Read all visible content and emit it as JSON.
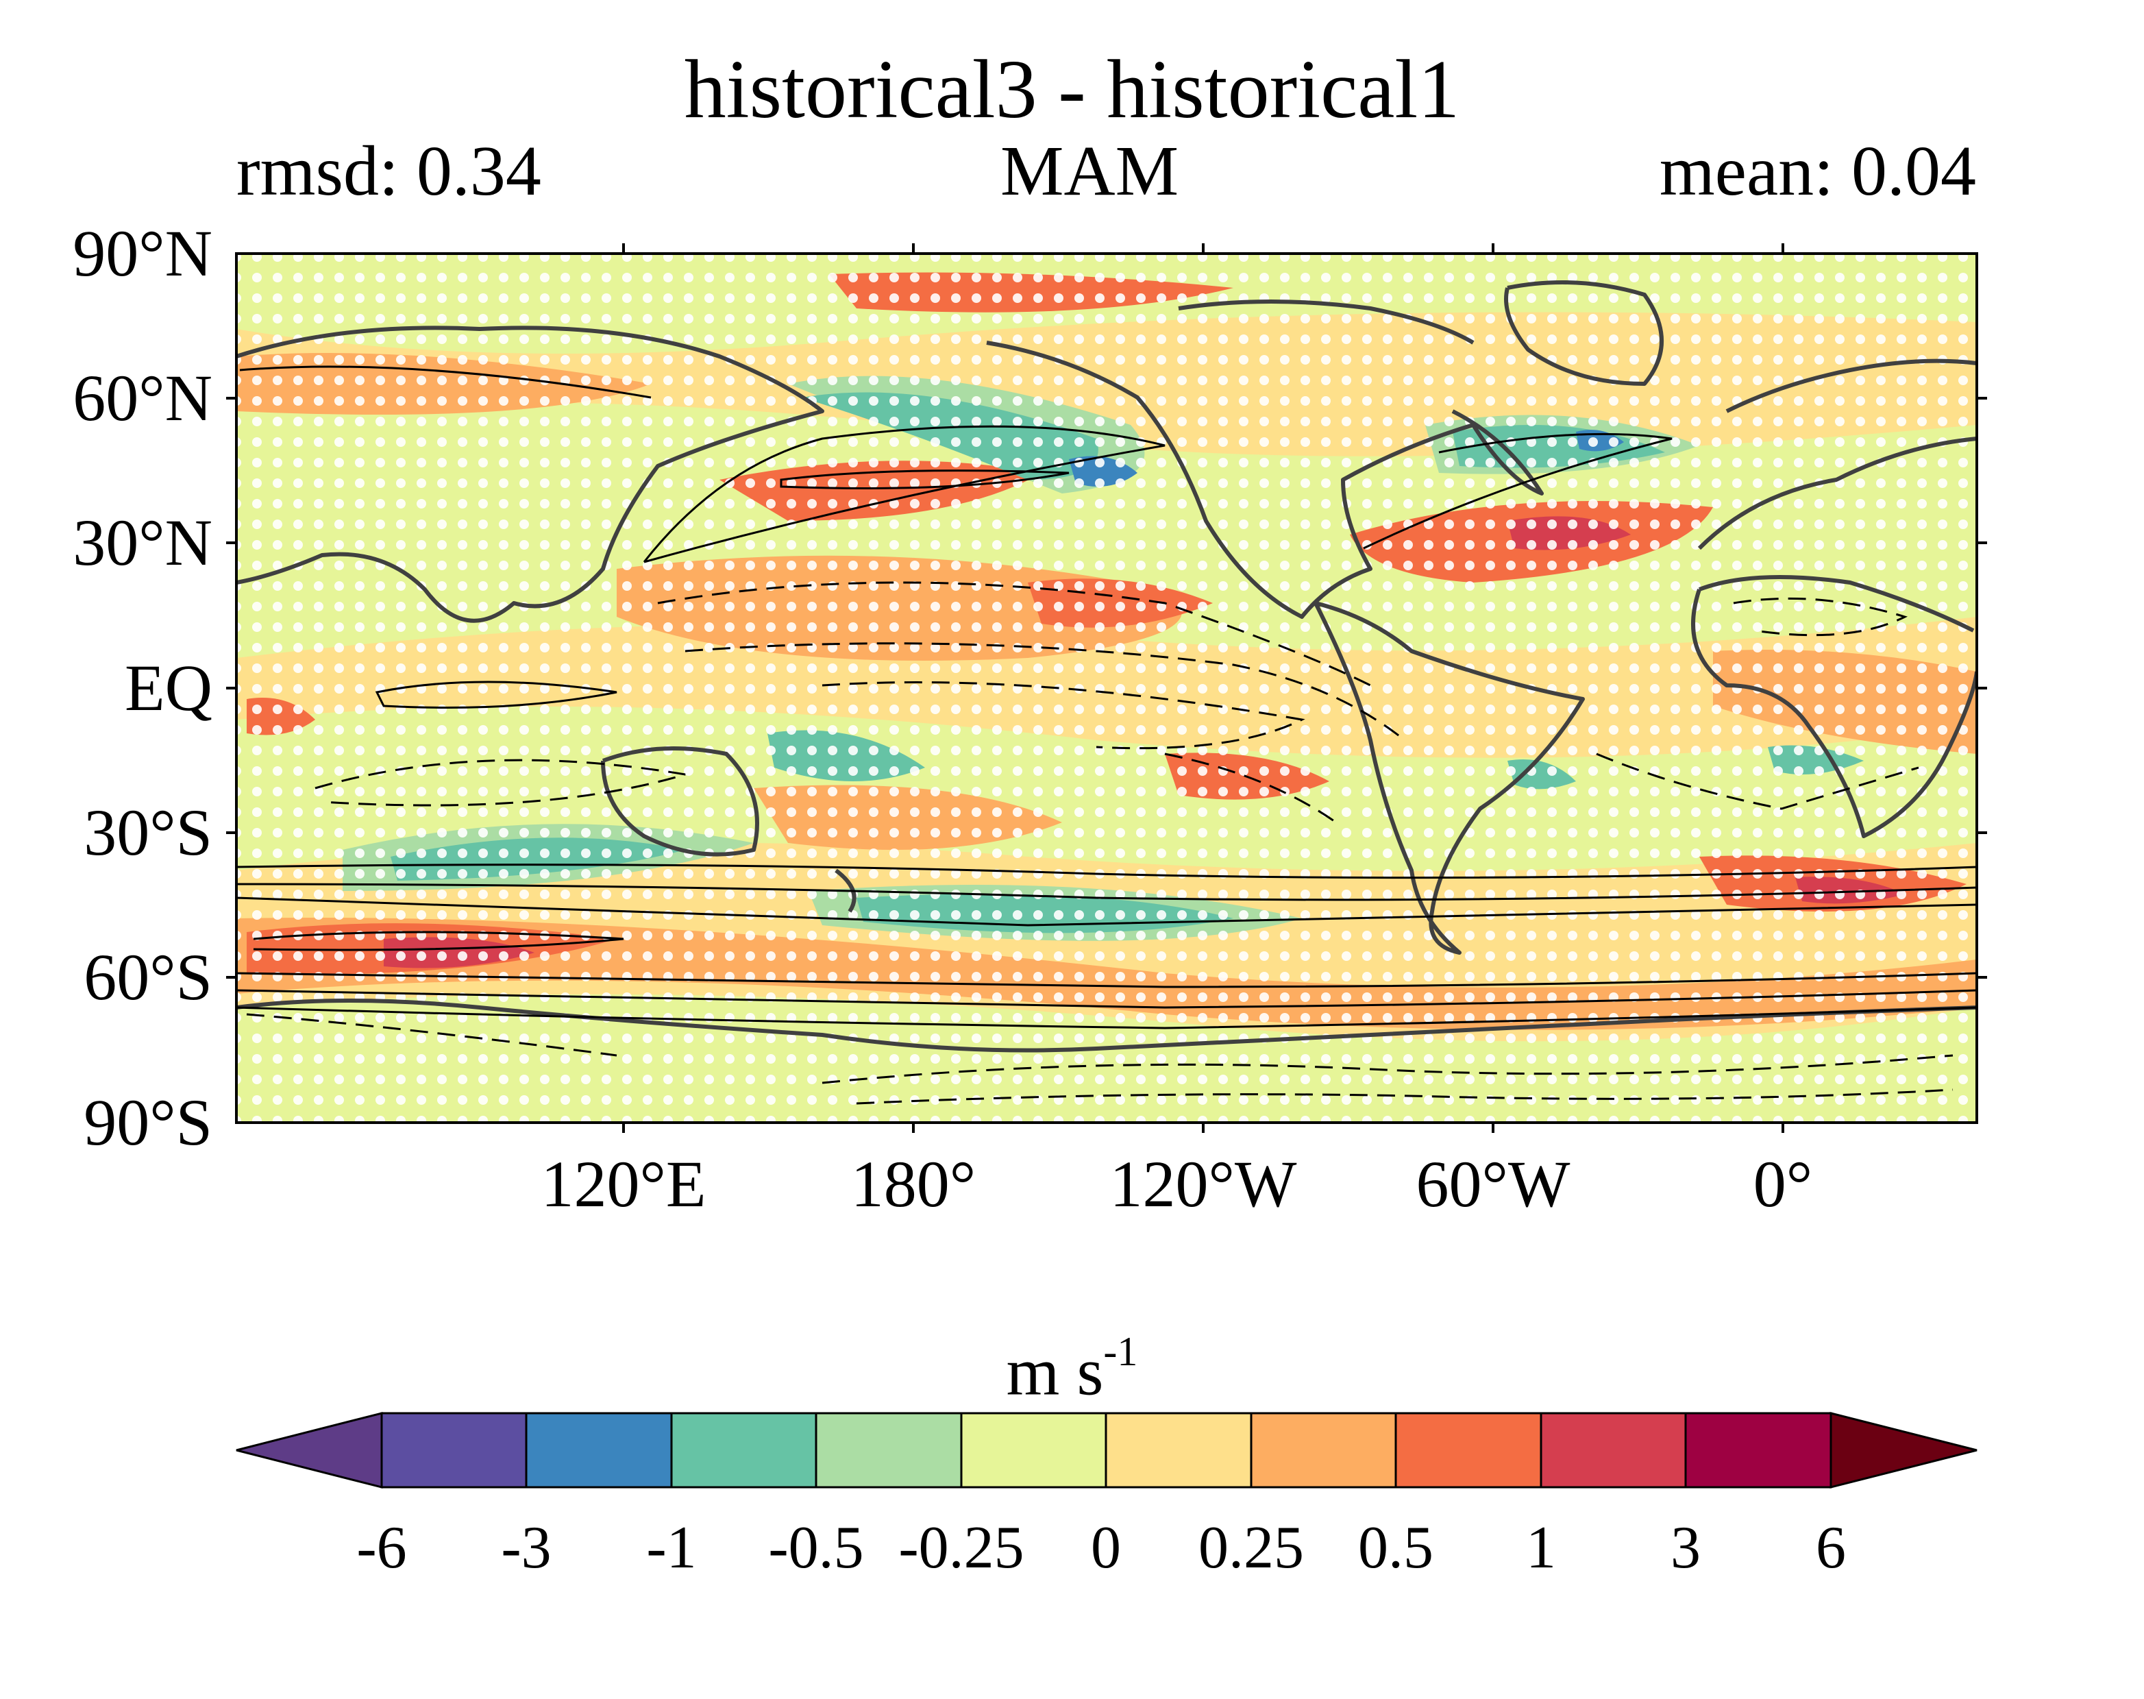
{
  "header": {
    "title": "historical3 - historical1",
    "left": "rmsd: 0.34",
    "center": "MAM",
    "right": "mean: 0.04"
  },
  "map": {
    "lat_labels": [
      "90°N",
      "60°N",
      "30°N",
      "EQ",
      "30°S",
      "60°S",
      "90°S"
    ],
    "lon_labels": [
      "120°E",
      "180°",
      "120°W",
      "60°W",
      "0°"
    ]
  },
  "colorbar": {
    "label_base": "m s",
    "label_exp": "-1",
    "ticks": [
      "-6",
      "-3",
      "-1",
      "-0.5",
      "-0.25",
      "0",
      "0.25",
      "0.5",
      "1",
      "3",
      "6"
    ],
    "colors": [
      "#5e3c87",
      "#5c4ea1",
      "#3b85be",
      "#66c3a5",
      "#abdda4",
      "#e6f598",
      "#fee08b",
      "#fdad61",
      "#f46d43",
      "#d53e4f",
      "#9e0142",
      "#6b0012"
    ]
  }
}
